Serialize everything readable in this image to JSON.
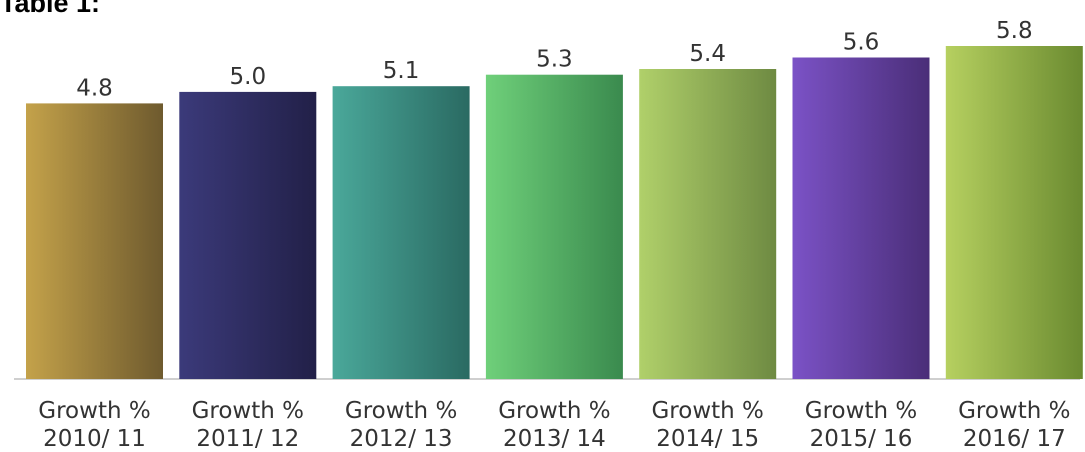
{
  "chart_data": {
    "type": "bar",
    "title": "Table 1:",
    "categories": [
      [
        "Growth %",
        "2010/ 11"
      ],
      [
        "Growth %",
        "2011/ 12"
      ],
      [
        "Growth %",
        "2012/ 13"
      ],
      [
        "Growth %",
        "2013/ 14"
      ],
      [
        "Growth %",
        "2014/ 15"
      ],
      [
        "Growth %",
        "2015/ 16"
      ],
      [
        "Growth %",
        "2016/ 17"
      ]
    ],
    "values": [
      4.8,
      5.0,
      5.1,
      5.3,
      5.4,
      5.6,
      5.8
    ],
    "value_labels": [
      "4.8",
      "5.0",
      "5.1",
      "5.3",
      "5.4",
      "5.6",
      "5.8"
    ],
    "ylim": [
      0,
      5.8
    ],
    "grid": false,
    "legend": "none",
    "bar_colors": [
      [
        "#c4a24a",
        "#6e5a2e"
      ],
      [
        "#3b3a7a",
        "#222048"
      ],
      [
        "#4aa89a",
        "#2a6a62"
      ],
      [
        "#6fd07a",
        "#3a8a4e"
      ],
      [
        "#b0d06a",
        "#6e8a42"
      ],
      [
        "#7b52c6",
        "#4a2e78"
      ],
      [
        "#b6d060",
        "#6a8a30"
      ]
    ]
  }
}
